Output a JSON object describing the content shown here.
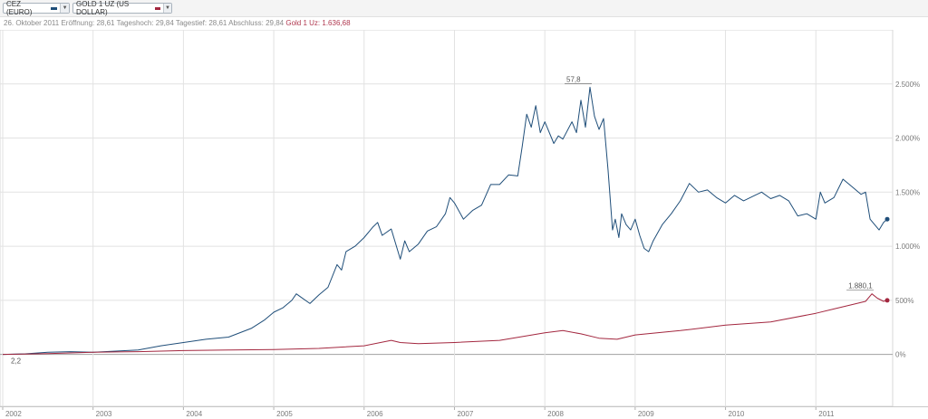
{
  "toolbar": {
    "cez_chip": {
      "label": "CEZ (EURO)",
      "color": "#1f4e79"
    },
    "gold_chip": {
      "label": "GOLD 1 UZ (US DOLLAR)",
      "color": "#a3273f"
    }
  },
  "infobar": {
    "date": "26. Oktober 2011",
    "open_label": "Eröffnung:",
    "open_value": "28,61",
    "high_label": "Tageshoch:",
    "high_value": "29,84",
    "low_label": "Tagestief:",
    "low_value": "28,61",
    "close_label": "Abschluss:",
    "close_value": "29,84",
    "gold_label": "Gold 1 Uz:",
    "gold_value": "1.636,68"
  },
  "chart_data": {
    "type": "line",
    "title": "",
    "xlabel": "",
    "ylabel": "",
    "x_ticks": [
      "2002",
      "2003",
      "2004",
      "2005",
      "2006",
      "2007",
      "2008",
      "2009",
      "2010",
      "2011"
    ],
    "y_ticks": [
      {
        "value": 0,
        "label": "0%"
      },
      {
        "value": 500,
        "label": "500%"
      },
      {
        "value": 1000,
        "label": "1.000%"
      },
      {
        "value": 1500,
        "label": "1.500%"
      },
      {
        "value": 2000,
        "label": "2.000%"
      },
      {
        "value": 2500,
        "label": "2.500%"
      }
    ],
    "xlim": [
      2001.97,
      2011.85
    ],
    "ylim": [
      -480,
      3000
    ],
    "grid": true,
    "y_axis_side": "right",
    "series": [
      {
        "key": "cez",
        "color": "#1f4e79",
        "points": [
          [
            2002.0,
            0
          ],
          [
            2002.25,
            5
          ],
          [
            2002.5,
            20
          ],
          [
            2002.75,
            25
          ],
          [
            2003.0,
            20
          ],
          [
            2003.25,
            30
          ],
          [
            2003.5,
            40
          ],
          [
            2003.75,
            80
          ],
          [
            2004.0,
            110
          ],
          [
            2004.25,
            140
          ],
          [
            2004.5,
            160
          ],
          [
            2004.75,
            240
          ],
          [
            2004.9,
            320
          ],
          [
            2005.0,
            390
          ],
          [
            2005.1,
            430
          ],
          [
            2005.2,
            500
          ],
          [
            2005.25,
            560
          ],
          [
            2005.3,
            530
          ],
          [
            2005.4,
            470
          ],
          [
            2005.5,
            550
          ],
          [
            2005.6,
            620
          ],
          [
            2005.7,
            830
          ],
          [
            2005.75,
            780
          ],
          [
            2005.8,
            950
          ],
          [
            2005.9,
            1000
          ],
          [
            2006.0,
            1080
          ],
          [
            2006.1,
            1180
          ],
          [
            2006.15,
            1220
          ],
          [
            2006.2,
            1100
          ],
          [
            2006.3,
            1160
          ],
          [
            2006.4,
            880
          ],
          [
            2006.45,
            1050
          ],
          [
            2006.5,
            950
          ],
          [
            2006.6,
            1020
          ],
          [
            2006.7,
            1140
          ],
          [
            2006.8,
            1180
          ],
          [
            2006.9,
            1300
          ],
          [
            2006.95,
            1450
          ],
          [
            2007.0,
            1400
          ],
          [
            2007.1,
            1250
          ],
          [
            2007.2,
            1330
          ],
          [
            2007.3,
            1380
          ],
          [
            2007.4,
            1570
          ],
          [
            2007.5,
            1570
          ],
          [
            2007.6,
            1660
          ],
          [
            2007.7,
            1650
          ],
          [
            2007.75,
            1920
          ],
          [
            2007.8,
            2220
          ],
          [
            2007.85,
            2100
          ],
          [
            2007.9,
            2300
          ],
          [
            2007.95,
            2050
          ],
          [
            2008.0,
            2150
          ],
          [
            2008.1,
            1950
          ],
          [
            2008.15,
            2020
          ],
          [
            2008.2,
            1990
          ],
          [
            2008.3,
            2150
          ],
          [
            2008.35,
            2050
          ],
          [
            2008.4,
            2350
          ],
          [
            2008.45,
            2100
          ],
          [
            2008.5,
            2470
          ],
          [
            2008.55,
            2200
          ],
          [
            2008.6,
            2080
          ],
          [
            2008.65,
            2180
          ],
          [
            2008.7,
            1700
          ],
          [
            2008.75,
            1150
          ],
          [
            2008.78,
            1250
          ],
          [
            2008.82,
            1080
          ],
          [
            2008.85,
            1300
          ],
          [
            2008.9,
            1200
          ],
          [
            2008.95,
            1150
          ],
          [
            2009.0,
            1250
          ],
          [
            2009.05,
            1100
          ],
          [
            2009.1,
            980
          ],
          [
            2009.15,
            950
          ],
          [
            2009.2,
            1050
          ],
          [
            2009.3,
            1200
          ],
          [
            2009.4,
            1300
          ],
          [
            2009.5,
            1420
          ],
          [
            2009.6,
            1580
          ],
          [
            2009.7,
            1500
          ],
          [
            2009.8,
            1520
          ],
          [
            2009.9,
            1450
          ],
          [
            2010.0,
            1400
          ],
          [
            2010.1,
            1470
          ],
          [
            2010.2,
            1420
          ],
          [
            2010.3,
            1460
          ],
          [
            2010.4,
            1500
          ],
          [
            2010.5,
            1440
          ],
          [
            2010.6,
            1470
          ],
          [
            2010.7,
            1420
          ],
          [
            2010.8,
            1280
          ],
          [
            2010.9,
            1300
          ],
          [
            2011.0,
            1250
          ],
          [
            2011.05,
            1500
          ],
          [
            2011.1,
            1400
          ],
          [
            2011.2,
            1450
          ],
          [
            2011.3,
            1620
          ],
          [
            2011.4,
            1550
          ],
          [
            2011.5,
            1480
          ],
          [
            2011.55,
            1500
          ],
          [
            2011.6,
            1250
          ],
          [
            2011.65,
            1200
          ],
          [
            2011.7,
            1150
          ],
          [
            2011.75,
            1220
          ],
          [
            2011.79,
            1250
          ]
        ],
        "annotation": {
          "label": "57,8",
          "x": 2008.5,
          "y": 2470
        },
        "start_annotation": {
          "label": "2,2",
          "x": 2002.0,
          "y": 0
        }
      },
      {
        "key": "gold",
        "color": "#a3273f",
        "points": [
          [
            2002.0,
            0
          ],
          [
            2002.5,
            8
          ],
          [
            2003.0,
            20
          ],
          [
            2003.5,
            25
          ],
          [
            2004.0,
            35
          ],
          [
            2004.5,
            40
          ],
          [
            2005.0,
            45
          ],
          [
            2005.5,
            55
          ],
          [
            2006.0,
            80
          ],
          [
            2006.3,
            130
          ],
          [
            2006.4,
            110
          ],
          [
            2006.6,
            100
          ],
          [
            2007.0,
            110
          ],
          [
            2007.5,
            130
          ],
          [
            2008.0,
            200
          ],
          [
            2008.2,
            220
          ],
          [
            2008.4,
            190
          ],
          [
            2008.6,
            150
          ],
          [
            2008.8,
            140
          ],
          [
            2009.0,
            180
          ],
          [
            2009.5,
            220
          ],
          [
            2010.0,
            270
          ],
          [
            2010.5,
            300
          ],
          [
            2011.0,
            380
          ],
          [
            2011.2,
            420
          ],
          [
            2011.4,
            460
          ],
          [
            2011.55,
            490
          ],
          [
            2011.62,
            560
          ],
          [
            2011.68,
            520
          ],
          [
            2011.75,
            490
          ],
          [
            2011.79,
            500
          ]
        ],
        "annotation": {
          "label": "1.880,1",
          "x": 2011.62,
          "y": 560
        }
      }
    ]
  }
}
